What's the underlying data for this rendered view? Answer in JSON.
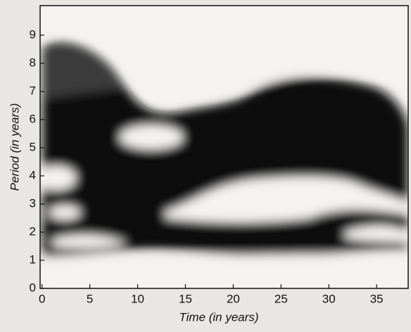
{
  "chart_data": {
    "type": "heatmap",
    "x_label": "Time (in years)",
    "y_label": "Period (in years)",
    "xlim": [
      -0.2,
      38.3
    ],
    "xticks": [
      0,
      5,
      10,
      15,
      20,
      25,
      30,
      35
    ],
    "ylim": [
      0,
      10.05
    ],
    "yticks": [
      0,
      1,
      2,
      3,
      4,
      5,
      6,
      7,
      8,
      9
    ],
    "color": "#0b0b0b"
  }
}
